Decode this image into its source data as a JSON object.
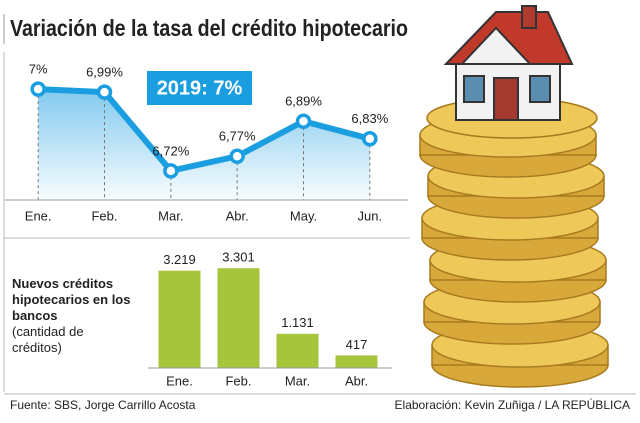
{
  "chart_data": [
    {
      "type": "line",
      "title": "Variación de la tasa del crédito hipotecario",
      "categories": [
        "Ene.",
        "Feb.",
        "Mar.",
        "Abr.",
        "May.",
        "Jun."
      ],
      "values": [
        7,
        6.99,
        6.72,
        6.77,
        6.89,
        6.83
      ],
      "value_labels": [
        "7%",
        "6,99%",
        "6,72%",
        "6,77%",
        "6,89%",
        "6,83%"
      ],
      "color": "#1a9ee0",
      "ylim": [
        6.62,
        7.1
      ],
      "annotation": "2019: 7%"
    },
    {
      "type": "bar",
      "title": "Nuevos créditos hipotecarios en los bancos",
      "subtitle": "(cantidad de créditos)",
      "categories": [
        "Ene.",
        "Feb.",
        "Mar.",
        "Abr."
      ],
      "values": [
        3219,
        3301,
        1131,
        417
      ],
      "value_labels": [
        "3.219",
        "3.301",
        "1.131",
        "417"
      ],
      "color": "#a6c53a",
      "ylim": [
        0,
        4300
      ]
    }
  ],
  "footer": {
    "source": "Fuente: SBS, Jorge Carrillo Acosta",
    "credit": "Elaboración: Kevin Zuñiga / LA REPÚBLICA"
  }
}
